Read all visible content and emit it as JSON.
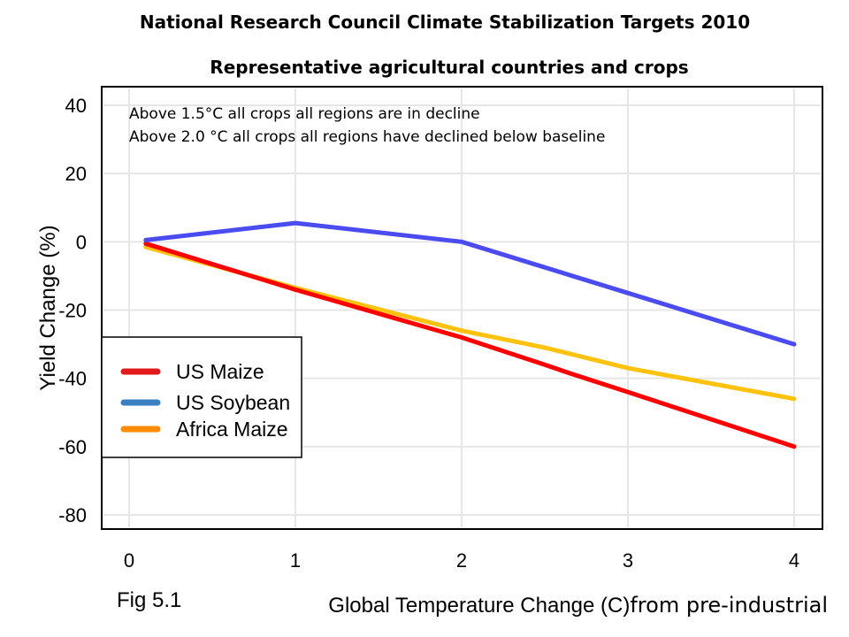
{
  "chart_data": {
    "type": "line",
    "title": "National Research Council Climate Stabilization Targets 2010",
    "subtitle": "Representative agricultural countries and crops",
    "xlabel_part1": "Global Temperature Change (C)",
    "xlabel_part2": "from pre-industrial",
    "ylabel": "Yield Change (%)",
    "xlim": [
      0,
      4
    ],
    "ylim": [
      -80,
      40
    ],
    "x_ticks": [
      "0",
      "1",
      "2",
      "3",
      "4"
    ],
    "y_ticks": [
      "40",
      "20",
      "0",
      "-20",
      "-40",
      "-60",
      "-80"
    ],
    "grid": true,
    "legend_position": "left",
    "annotations": [
      "Above 1.5°C all crops all regions are in decline",
      "Above 2.0 °C all crops all regions have declined below baseline"
    ],
    "series": [
      {
        "name": "US Maize",
        "color": "#ff0000",
        "legend_color": "#e31a1c",
        "x": [
          0.1,
          1,
          2,
          2.5,
          2.65,
          3,
          4
        ],
        "y": [
          -0.5,
          -14,
          -28,
          -36,
          -38.5,
          -44,
          -60
        ]
      },
      {
        "name": "US Soybean",
        "color": "#4b4cf0",
        "legend_color": "#3a7fc1",
        "x": [
          0.1,
          1,
          2,
          3,
          4
        ],
        "y": [
          0.5,
          5.5,
          0,
          -15,
          -30
        ]
      },
      {
        "name": "Africa Maize",
        "color": "#ffc20e",
        "legend_color": "#ff8c00",
        "x": [
          0.1,
          1,
          2,
          2.5,
          3,
          4
        ],
        "y": [
          -1.5,
          -13.5,
          -26,
          -31,
          -37,
          -46
        ]
      }
    ]
  },
  "caption": "Fig 5.1"
}
